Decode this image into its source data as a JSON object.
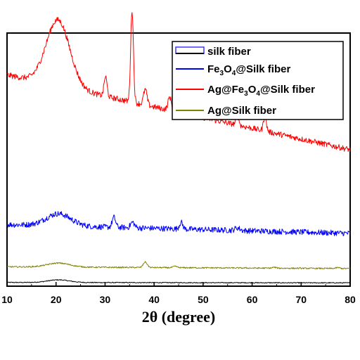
{
  "chart_data": {
    "type": "line",
    "xlabel": "2θ (degree)",
    "ylabel": "",
    "xlim": [
      10,
      80
    ],
    "x_ticks": [
      "10",
      "20",
      "30",
      "40",
      "50",
      "60",
      "70",
      "80"
    ],
    "y_tick_labels": false,
    "legend_position": "top-right",
    "series": [
      {
        "name": "silk fiber",
        "legend_parts": [
          {
            "t": "silk fiber",
            "sub": false
          }
        ],
        "color": "#000000",
        "legend_style": "box",
        "baseline": 0.015,
        "decay": 0.002,
        "noise": 0.002,
        "peaks": [
          [
            20.5,
            0.012,
            2.2
          ]
        ]
      },
      {
        "name": "Fe3O4@Silk fiber",
        "legend_parts": [
          {
            "t": "Fe",
            "sub": false
          },
          {
            "t": "3",
            "sub": true
          },
          {
            "t": "O",
            "sub": false
          },
          {
            "t": "4",
            "sub": true
          },
          {
            "t": "@Silk fiber",
            "sub": false
          }
        ],
        "color": "#0000ff",
        "legend_style": "line",
        "baseline": 0.24,
        "decay": 0.04,
        "noise": 0.013,
        "peaks": [
          [
            20.5,
            0.055,
            2.5
          ],
          [
            31.8,
            0.045,
            0.35
          ],
          [
            35.6,
            0.025,
            0.4
          ],
          [
            45.5,
            0.03,
            0.35
          ],
          [
            57.0,
            0.012,
            0.5
          ]
        ]
      },
      {
        "name": "Ag@Fe3O4@Silk fiber",
        "legend_parts": [
          {
            "t": "Ag@Fe",
            "sub": false
          },
          {
            "t": "3",
            "sub": true
          },
          {
            "t": "O",
            "sub": false
          },
          {
            "t": "4",
            "sub": true
          },
          {
            "t": "@Silk fiber",
            "sub": false
          }
        ],
        "color": "#ff0000",
        "legend_style": "line",
        "baseline": 0.62,
        "decay": 0.34,
        "noise": 0.013,
        "peaks": [
          [
            20.4,
            0.3,
            2.4
          ],
          [
            30.1,
            0.09,
            0.3
          ],
          [
            35.5,
            0.42,
            0.28
          ],
          [
            38.2,
            0.07,
            0.35
          ],
          [
            43.2,
            0.06,
            0.35
          ],
          [
            57.0,
            0.045,
            0.3
          ],
          [
            62.6,
            0.065,
            0.3
          ]
        ]
      },
      {
        "name": "Ag@Silk fiber",
        "legend_parts": [
          {
            "t": "Ag@Silk fiber",
            "sub": false
          }
        ],
        "color": "#808000",
        "legend_style": "line",
        "baseline": 0.08,
        "decay": 0.008,
        "noise": 0.003,
        "peaks": [
          [
            20.5,
            0.018,
            2.3
          ],
          [
            38.2,
            0.025,
            0.4
          ],
          [
            44.3,
            0.006,
            0.4
          ],
          [
            64.5,
            0.004,
            0.4
          ],
          [
            77.5,
            0.004,
            0.4
          ]
        ]
      }
    ]
  }
}
